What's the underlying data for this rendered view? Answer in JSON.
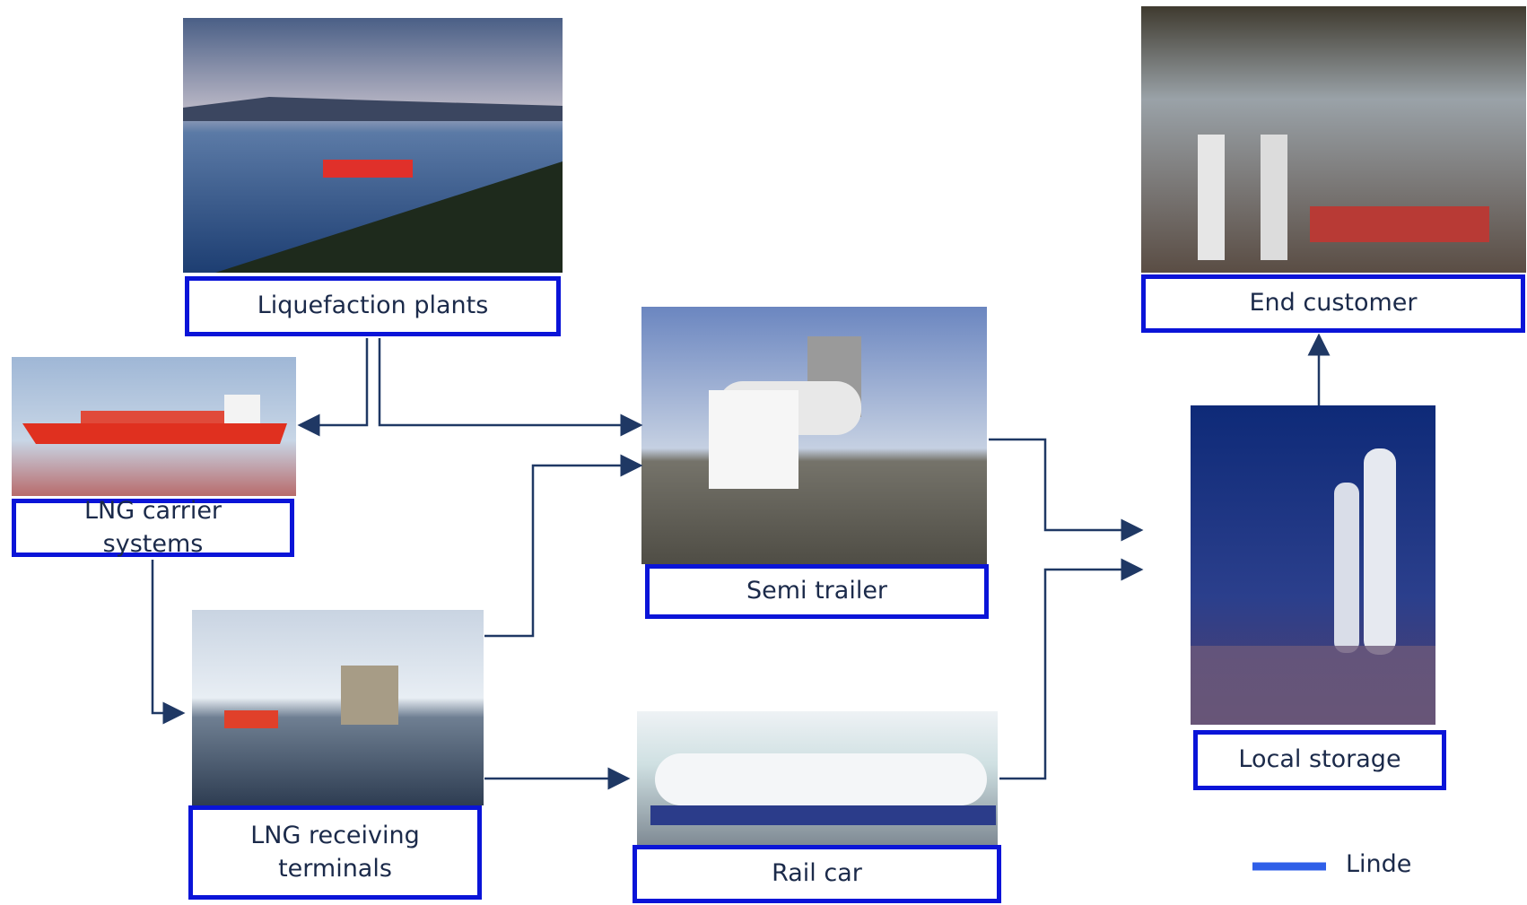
{
  "nodes": [
    {
      "label": "Liquefaction plants"
    },
    {
      "label": "LNG carrier systems"
    },
    {
      "label": "LNG receiving terminals"
    },
    {
      "label": "Semi trailer"
    },
    {
      "label": "Rail car"
    },
    {
      "label": "End customer"
    },
    {
      "label": "Local storage"
    }
  ],
  "legend": {
    "label": "Linde"
  }
}
